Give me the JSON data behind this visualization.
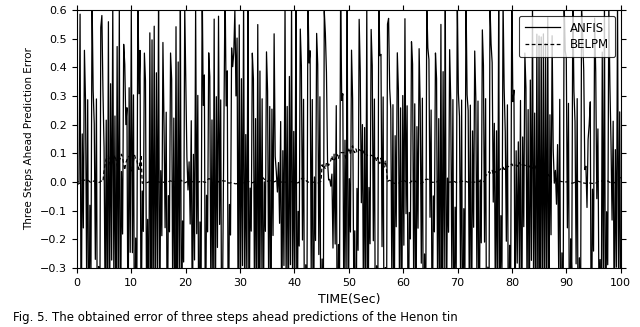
{
  "title": "",
  "xlabel": "TIME(Sec)",
  "ylabel": "Three Steps Ahead Prediction Error",
  "xlim": [
    0,
    100
  ],
  "ylim": [
    -0.3,
    0.6
  ],
  "yticks": [
    -0.3,
    -0.2,
    -0.1,
    0.0,
    0.1,
    0.2,
    0.3,
    0.4,
    0.5,
    0.6
  ],
  "xticks": [
    0,
    10,
    20,
    30,
    40,
    50,
    60,
    70,
    80,
    90,
    100
  ],
  "legend_labels": [
    "ANFIS",
    "BELPM"
  ],
  "line_color": "#000000",
  "background_color": "#ffffff",
  "figsize": [
    6.4,
    3.27
  ],
  "dpi": 100,
  "caption": "Fig. 5. The obtained error of three steps ahead predictions of the Henon tin"
}
